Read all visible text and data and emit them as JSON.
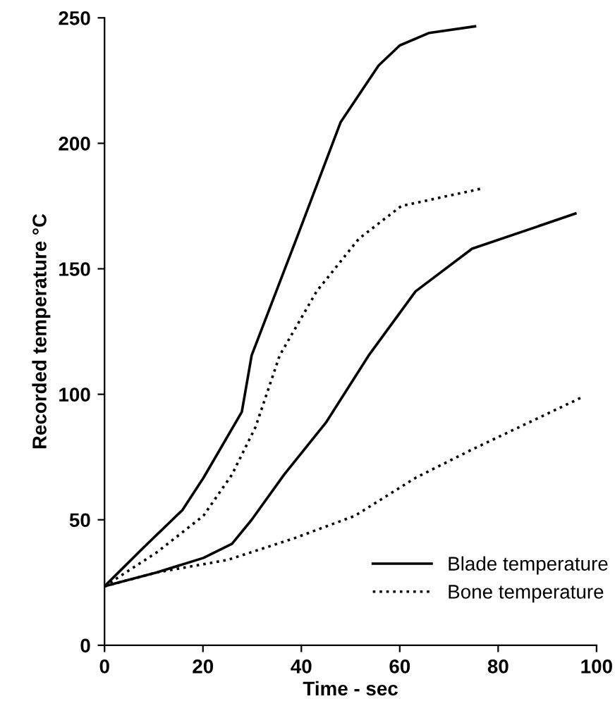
{
  "chart_data": {
    "type": "line",
    "xlabel": "Time - sec",
    "ylabel": "Recorded temperature °C",
    "xlim": [
      0,
      100
    ],
    "ylim": [
      0,
      250
    ],
    "xticks": [
      0,
      20,
      40,
      60,
      80,
      100
    ],
    "yticks": [
      0,
      50,
      100,
      150,
      200,
      250
    ],
    "grid": false,
    "legend": "bottom right",
    "marker": "none",
    "series": [
      {
        "name": "Blade temperature",
        "color": "#000000",
        "line_style": "solid",
        "x": [
          0,
          7.8,
          15.8,
          20.1,
          27.9,
          29.9,
          39.4,
          48,
          55.7,
          60,
          66,
          75.3
        ],
        "values": [
          23.5,
          38.7,
          53.8,
          66.7,
          93,
          115.5,
          164,
          208.5,
          231,
          239,
          244,
          246.6
        ]
      },
      {
        "name": "Bone temperature",
        "color": "#000000",
        "line_style": "dotted",
        "x": [
          0,
          10.6,
          20.1,
          25.9,
          30.7,
          35.6,
          43.1,
          51.7,
          60.3,
          76.7
        ],
        "values": [
          23.5,
          37,
          51.6,
          68,
          87,
          115.5,
          141,
          162,
          175,
          182
        ]
      },
      {
        "color": "#000000",
        "line_style": "solid",
        "x": [
          0,
          10.6,
          20.1,
          25.9,
          29.9,
          36.5,
          45.1,
          53.7,
          63.2,
          74.7,
          95.7
        ],
        "values": [
          23.5,
          29,
          34.8,
          40.4,
          50,
          68,
          89,
          115.5,
          141,
          158,
          172
        ]
      },
      {
        "color": "#000000",
        "line_style": "dotted",
        "x": [
          0,
          10.6,
          25,
          38.5,
          50.9,
          63.2,
          74.7,
          96.8
        ],
        "values": [
          23.5,
          29,
          34,
          42.6,
          51.6,
          66.7,
          78,
          98.6
        ]
      }
    ]
  }
}
